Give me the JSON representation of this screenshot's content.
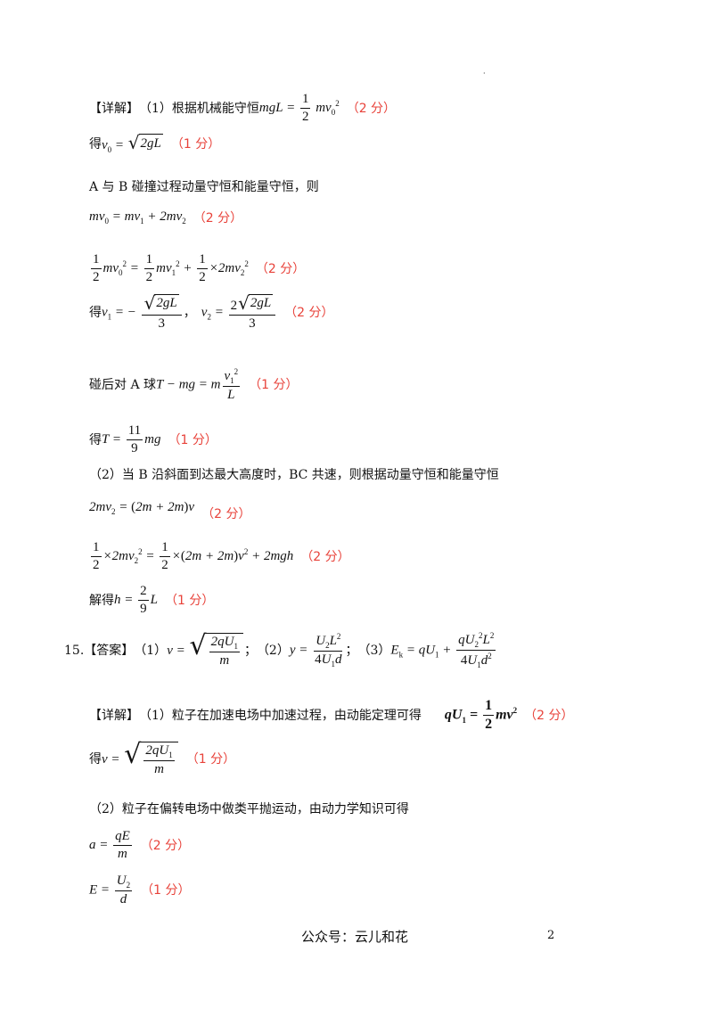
{
  "sections": {
    "xiangjie_label": "【详解】",
    "part1": "（1）根据机械能守恒",
    "de": "得",
    "collision_text": "A 与 B 碰撞过程动量守恒和能量守恒，则",
    "after_collision": "碰后对 A 球",
    "part2": "（2）当 B 沿斜面到达最大高度时，BC 共速，则根据动量守恒和能量守恒",
    "jiede": "解得",
    "q15_number": "15.",
    "daan_label": "【答案】",
    "sub1": "（1）",
    "sub2": "（2）",
    "sub3": "（3）",
    "sep1": "；",
    "sep2": "；",
    "comma": "，",
    "p15_part1": "（1）粒子在加速电场中加速过程，由动能定理可得",
    "p15_part2": "（2）粒子在偏转电场中做类平抛运动，由动力学知识可得"
  },
  "scores": {
    "s1": "（2 分）",
    "s2": "（1 分）",
    "s3": "（2 分）",
    "s4": "（2 分）",
    "s5": "（2 分）",
    "s6": "（1 分）",
    "s7": "（1 分）",
    "s8": "（2 分）",
    "s9": "（2 分）",
    "s10": "（1 分）",
    "s11": "（2 分）",
    "s12": "（1 分）",
    "s13": "（2 分）",
    "s14": "（1 分）"
  },
  "footer": {
    "text": "公众号：云儿和花",
    "page_number": "2"
  },
  "colors": {
    "score_red": "#e8423a",
    "text": "#111111"
  }
}
